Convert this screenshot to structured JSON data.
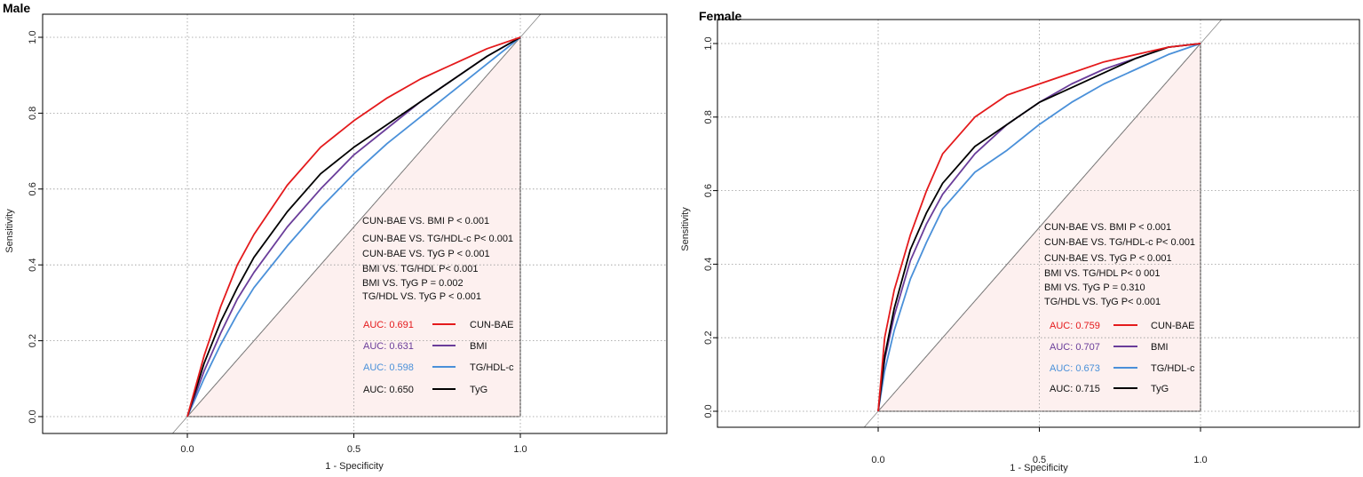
{
  "chart_data": [
    {
      "type": "line",
      "title": "Male",
      "xlabel": "1 - Specificity",
      "ylabel": "Sensitivity",
      "xlim": [
        -0.5,
        1.45
      ],
      "ylim": [
        -0.04,
        1.04
      ],
      "x_ticks": [
        "0.0",
        "0.5",
        "1.0"
      ],
      "y_ticks": [
        "0.0",
        "0.2",
        "0.4",
        "0.6",
        "0.8",
        "1.0"
      ],
      "grid": true,
      "x": [
        0,
        0.05,
        0.1,
        0.15,
        0.2,
        0.3,
        0.4,
        0.5,
        0.6,
        0.7,
        0.8,
        0.9,
        1.0
      ],
      "series": [
        {
          "name": "CUN-BAE",
          "color": "#e41a1c",
          "auc_label": "AUC: 0.691",
          "values": [
            0,
            0.16,
            0.29,
            0.4,
            0.48,
            0.61,
            0.71,
            0.78,
            0.84,
            0.89,
            0.93,
            0.97,
            1.0
          ]
        },
        {
          "name": "BMI",
          "color": "#6a3d9a",
          "auc_label": "AUC: 0.631",
          "values": [
            0,
            0.12,
            0.22,
            0.31,
            0.38,
            0.5,
            0.6,
            0.69,
            0.76,
            0.83,
            0.89,
            0.95,
            1.0
          ]
        },
        {
          "name": "TG/HDL-c",
          "color": "#4a90d9",
          "auc_label": "AUC: 0.598",
          "values": [
            0,
            0.1,
            0.19,
            0.27,
            0.34,
            0.45,
            0.55,
            0.64,
            0.72,
            0.79,
            0.86,
            0.93,
            1.0
          ]
        },
        {
          "name": "TyG",
          "color": "#000000",
          "auc_label": "AUC: 0.650",
          "values": [
            0,
            0.14,
            0.25,
            0.34,
            0.42,
            0.54,
            0.64,
            0.71,
            0.77,
            0.83,
            0.89,
            0.95,
            1.0
          ]
        }
      ],
      "annotations": [
        "CUN-BAE VS. BMI   P < 0.001",
        "CUN-BAE VS. TG/HDL-c  P< 0.001",
        "CUN-BAE VS. TyG   P < 0.001",
        "BMI VS. TG/HDL   P< 0.001",
        "BMI VS. TyG   P = 0.002",
        "TG/HDL VS. TyG   P < 0.001"
      ]
    },
    {
      "type": "line",
      "title": "Female",
      "xlabel": "1 - Specificity",
      "ylabel": "Sensitivity",
      "xlim": [
        -0.5,
        1.45
      ],
      "ylim": [
        -0.04,
        1.04
      ],
      "x_ticks": [
        "0.0",
        "0.5",
        "1.0"
      ],
      "y_ticks": [
        "0.0",
        "0.2",
        "0.4",
        "0.6",
        "0.8",
        "1.0"
      ],
      "grid": true,
      "x": [
        0,
        0.02,
        0.05,
        0.1,
        0.15,
        0.2,
        0.3,
        0.4,
        0.5,
        0.6,
        0.7,
        0.8,
        0.9,
        1.0
      ],
      "series": [
        {
          "name": "CUN-BAE",
          "color": "#e41a1c",
          "auc_label": "AUC: 0.759",
          "values": [
            0,
            0.2,
            0.33,
            0.48,
            0.6,
            0.7,
            0.8,
            0.86,
            0.89,
            0.92,
            0.95,
            0.97,
            0.99,
            1.0
          ]
        },
        {
          "name": "BMI",
          "color": "#6a3d9a",
          "auc_label": "AUC: 0.707",
          "values": [
            0,
            0.14,
            0.26,
            0.41,
            0.51,
            0.59,
            0.7,
            0.78,
            0.84,
            0.89,
            0.93,
            0.96,
            0.99,
            1.0
          ]
        },
        {
          "name": "TG/HDL-c",
          "color": "#4a90d9",
          "auc_label": "AUC: 0.673",
          "values": [
            0,
            0.11,
            0.22,
            0.36,
            0.46,
            0.55,
            0.65,
            0.71,
            0.78,
            0.84,
            0.89,
            0.93,
            0.97,
            1.0
          ]
        },
        {
          "name": "TyG",
          "color": "#000000",
          "auc_label": "AUC: 0.715",
          "values": [
            0,
            0.15,
            0.28,
            0.44,
            0.54,
            0.62,
            0.72,
            0.78,
            0.84,
            0.88,
            0.92,
            0.96,
            0.99,
            1.0
          ]
        }
      ],
      "annotations": [
        "CUN-BAE VS. BMI    P < 0.001",
        "CUN-BAE VS. TG/HDL-c P< 0.001",
        "CUN-BAE VS. TyG   P < 0.001",
        "BMI VS. TG/HDL   P< 0 001",
        "BMI VS. TyG   P = 0.310",
        "TG/HDL VS. TyG   P< 0.001"
      ]
    }
  ]
}
